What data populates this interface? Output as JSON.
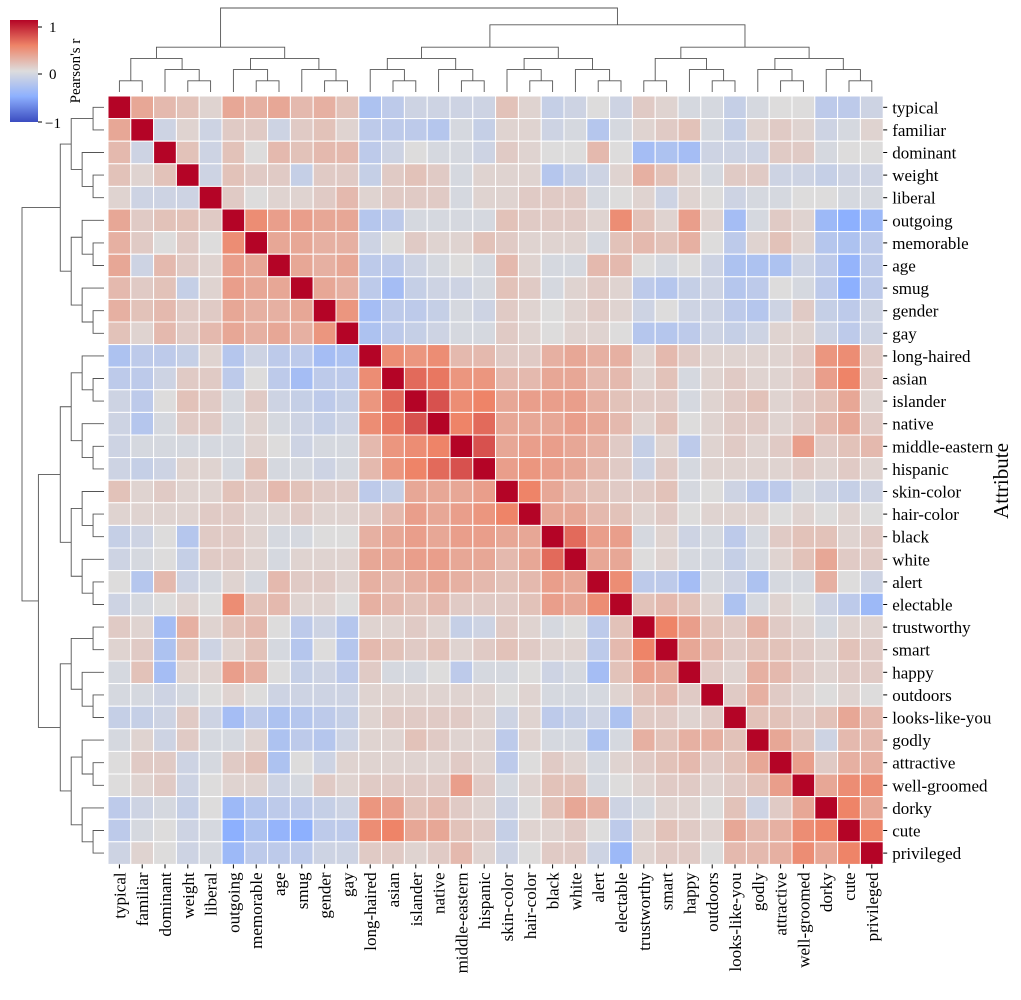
{
  "chart_data": {
    "type": "heatmap",
    "title": "",
    "ylabel": "Attribute",
    "xlabel": "",
    "labels": [
      "typical",
      "familiar",
      "dominant",
      "weight",
      "liberal",
      "outgoing",
      "memorable",
      "age",
      "smug",
      "gender",
      "gay",
      "long-haired",
      "asian",
      "islander",
      "native",
      "middle-eastern",
      "hispanic",
      "skin-color",
      "hair-color",
      "black",
      "white",
      "alert",
      "electable",
      "trustworthy",
      "smart",
      "happy",
      "outdoors",
      "looks-like-you",
      "godly",
      "attractive",
      "well-groomed",
      "dorky",
      "cute",
      "privileged"
    ],
    "colorbar": {
      "label": "Pearson's r",
      "min": -1,
      "max": 1,
      "ticks": [
        "1",
        "0",
        "−1"
      ]
    },
    "colormap": "coolwarm",
    "clusters": [
      [
        0,
        1,
        2,
        3,
        4,
        5,
        6,
        7,
        8,
        9,
        10
      ],
      [
        11,
        12,
        13,
        14,
        15,
        16,
        17,
        18,
        19,
        20,
        21,
        22
      ],
      [
        23,
        24,
        25,
        26,
        27,
        28,
        29,
        30,
        31,
        32,
        33
      ]
    ],
    "values": [
      [
        1,
        0.3,
        0.2,
        0.15,
        0.05,
        0.3,
        0.25,
        0.3,
        0.2,
        0.25,
        0.15,
        -0.3,
        -0.2,
        -0.1,
        -0.1,
        -0.1,
        -0.1,
        0.15,
        0.05,
        -0.15,
        -0.1,
        0,
        -0.1,
        0.1,
        0.05,
        -0.05,
        -0.05,
        -0.15,
        -0.05,
        0,
        0,
        -0.2,
        -0.2,
        -0.1
      ],
      [
        0.3,
        1,
        -0.1,
        0.05,
        -0.1,
        0.1,
        0.1,
        -0.1,
        0.1,
        0.15,
        0.05,
        -0.2,
        -0.2,
        -0.2,
        -0.25,
        -0.05,
        -0.15,
        0.05,
        0.05,
        -0.1,
        -0.05,
        -0.25,
        -0.05,
        0.05,
        0.1,
        0.15,
        -0.05,
        -0.15,
        0.05,
        0.1,
        0.05,
        -0.1,
        -0.05,
        0.05
      ],
      [
        0.2,
        -0.1,
        1,
        0.15,
        -0.1,
        0.15,
        0,
        0.2,
        0.15,
        0.2,
        0.2,
        -0.2,
        -0.1,
        0,
        -0.05,
        -0.05,
        -0.1,
        0.1,
        0.05,
        0,
        0,
        0.2,
        0,
        -0.35,
        -0.3,
        -0.35,
        -0.1,
        -0.1,
        -0.1,
        0.1,
        0.1,
        -0.05,
        0,
        0
      ],
      [
        0.15,
        0.05,
        0.15,
        1,
        -0.1,
        0.15,
        0.1,
        0.1,
        -0.15,
        0.1,
        0.1,
        -0.15,
        0.1,
        0.15,
        0.1,
        -0.05,
        0.05,
        0.05,
        0.05,
        -0.25,
        -0.15,
        -0.1,
        0.05,
        0.25,
        0.15,
        0.05,
        -0.05,
        0.1,
        0.1,
        -0.1,
        -0.1,
        -0.15,
        -0.1,
        -0.1
      ],
      [
        0.05,
        -0.1,
        -0.1,
        -0.1,
        1,
        0.1,
        0,
        0.05,
        0.05,
        0.1,
        0.2,
        0.05,
        0.1,
        0.1,
        0.1,
        -0.05,
        0.05,
        0.05,
        0.1,
        0.1,
        0.1,
        -0.05,
        0,
        0.05,
        -0.1,
        0.05,
        0,
        -0.1,
        -0.05,
        -0.05,
        0,
        0,
        -0.05,
        -0.05
      ],
      [
        0.3,
        0.1,
        0.15,
        0.15,
        0.1,
        1,
        0.45,
        0.35,
        0.35,
        0.3,
        0.3,
        -0.25,
        -0.2,
        -0.05,
        -0.05,
        -0.05,
        -0.05,
        0.15,
        0.1,
        0.1,
        0.1,
        0.05,
        0.45,
        0.15,
        0.05,
        0.35,
        0.05,
        -0.35,
        -0.05,
        0.1,
        0.05,
        -0.4,
        -0.5,
        -0.4
      ],
      [
        0.25,
        0.1,
        0,
        0.1,
        0,
        0.45,
        1,
        0.3,
        0.3,
        0.25,
        0.25,
        -0.1,
        0,
        0.1,
        0.05,
        0.05,
        0.15,
        0.1,
        0.05,
        0.05,
        0.05,
        -0.05,
        0.15,
        0.2,
        0.15,
        0.25,
        0,
        -0.2,
        0.05,
        0.15,
        0.05,
        -0.25,
        -0.3,
        -0.2
      ],
      [
        0.3,
        -0.1,
        0.2,
        0.1,
        0.05,
        0.35,
        0.3,
        1,
        0.3,
        0.25,
        0.3,
        -0.2,
        -0.2,
        -0.1,
        -0.05,
        0,
        -0.05,
        0.2,
        0.05,
        -0.05,
        -0.05,
        0.2,
        0.2,
        0,
        -0.05,
        0,
        -0.1,
        -0.3,
        -0.3,
        -0.3,
        -0.1,
        -0.2,
        -0.45,
        -0.2
      ],
      [
        0.2,
        0.1,
        0.15,
        -0.15,
        0.05,
        0.35,
        0.3,
        0.3,
        1,
        0.3,
        0.25,
        -0.2,
        -0.35,
        -0.15,
        -0.1,
        -0.1,
        -0.05,
        0.15,
        0.1,
        -0.05,
        0.05,
        0.1,
        0.05,
        -0.2,
        -0.25,
        -0.15,
        -0.1,
        -0.25,
        -0.2,
        0,
        -0.05,
        -0.2,
        -0.5,
        -0.2
      ],
      [
        0.25,
        0.15,
        0.2,
        0.1,
        0.1,
        0.3,
        0.25,
        0.25,
        0.3,
        1,
        0.4,
        -0.35,
        -0.2,
        -0.2,
        -0.15,
        -0.05,
        -0.1,
        0.1,
        0.05,
        0,
        0.05,
        0.1,
        0.05,
        -0.1,
        0,
        -0.1,
        -0.1,
        -0.2,
        -0.25,
        -0.1,
        0.1,
        -0.15,
        -0.2,
        -0.1
      ],
      [
        0.15,
        0.05,
        0.2,
        0.1,
        0.2,
        0.3,
        0.25,
        0.3,
        0.25,
        0.4,
        1,
        -0.3,
        -0.2,
        -0.15,
        -0.1,
        -0.05,
        -0.05,
        0.1,
        0.05,
        0,
        0.05,
        0.05,
        0,
        -0.25,
        -0.25,
        -0.2,
        -0.1,
        -0.15,
        -0.1,
        0.05,
        0.05,
        -0.1,
        -0.2,
        -0.1
      ],
      [
        -0.3,
        -0.2,
        -0.2,
        -0.15,
        0.05,
        -0.25,
        -0.1,
        -0.2,
        -0.2,
        -0.35,
        -0.3,
        1,
        0.45,
        0.4,
        0.45,
        0.2,
        0.2,
        0.1,
        0.1,
        0.25,
        0.3,
        0.25,
        0.25,
        0.05,
        0.2,
        0.1,
        0.05,
        0.05,
        0.05,
        0.05,
        0.1,
        0.4,
        0.45,
        0.1
      ],
      [
        -0.2,
        -0.2,
        -0.1,
        0.1,
        0.1,
        -0.2,
        0,
        -0.2,
        -0.35,
        -0.2,
        -0.2,
        0.45,
        1,
        0.6,
        0.55,
        0.4,
        0.4,
        0.2,
        0.2,
        0.3,
        0.3,
        0.2,
        0.2,
        0.05,
        0.15,
        -0.05,
        0.05,
        0.1,
        0.05,
        0.05,
        0.1,
        0.35,
        0.5,
        0.1
      ],
      [
        -0.1,
        -0.2,
        0,
        0.15,
        0.1,
        -0.05,
        0.1,
        -0.1,
        -0.15,
        -0.2,
        -0.15,
        0.4,
        0.6,
        1,
        0.7,
        0.45,
        0.5,
        0.3,
        0.35,
        0.35,
        0.35,
        0.25,
        0.15,
        0.1,
        0.1,
        -0.05,
        0.05,
        0.1,
        0.15,
        0.05,
        0.1,
        0.15,
        0.3,
        0.05
      ],
      [
        -0.1,
        -0.25,
        -0.05,
        0.1,
        0.1,
        -0.05,
        0.05,
        -0.05,
        -0.1,
        -0.15,
        -0.1,
        0.45,
        0.55,
        0.7,
        1,
        0.5,
        0.6,
        0.3,
        0.3,
        0.3,
        0.35,
        0.3,
        0.2,
        0.05,
        0.15,
        0,
        0.05,
        0.1,
        0.1,
        0.05,
        0.1,
        0.2,
        0.3,
        0.1
      ],
      [
        -0.1,
        -0.05,
        -0.05,
        -0.05,
        -0.05,
        -0.05,
        0.05,
        0,
        -0.1,
        -0.05,
        -0.05,
        0.2,
        0.4,
        0.45,
        0.5,
        1,
        0.7,
        0.3,
        0.35,
        0.35,
        0.3,
        0.25,
        0.1,
        -0.15,
        0.05,
        -0.2,
        0.05,
        0.1,
        0.05,
        0.1,
        0.35,
        0.1,
        0.15,
        0.2
      ],
      [
        -0.1,
        -0.15,
        -0.1,
        0.05,
        0.05,
        -0.05,
        0.15,
        -0.05,
        -0.05,
        -0.1,
        -0.05,
        0.2,
        0.4,
        0.5,
        0.6,
        0.7,
        1,
        0.35,
        0.4,
        0.35,
        0.3,
        0.2,
        0.1,
        -0.1,
        0.1,
        -0.05,
        0.05,
        0.05,
        0.05,
        0.05,
        0.1,
        0.05,
        0.1,
        0.05
      ],
      [
        0.15,
        0.05,
        0.1,
        0.05,
        0.05,
        0.15,
        0.1,
        0.2,
        0.15,
        0.1,
        0.1,
        -0.2,
        -0.15,
        0.3,
        0.3,
        0.3,
        0.35,
        1,
        0.5,
        0.3,
        0.2,
        0.15,
        0.1,
        0.1,
        0.15,
        -0.05,
        0,
        -0.1,
        -0.2,
        -0.2,
        -0.05,
        -0.1,
        -0.15,
        -0.1
      ],
      [
        0.05,
        0.05,
        0.05,
        0.05,
        0.1,
        0.1,
        0.05,
        0.05,
        0.1,
        0.05,
        0.05,
        0.1,
        0.2,
        0.35,
        0.3,
        0.35,
        0.4,
        0.5,
        1,
        0.3,
        0.3,
        0.2,
        0.15,
        0.05,
        0.1,
        0,
        0.05,
        0.05,
        0.05,
        0,
        0.05,
        0,
        0.05,
        0
      ],
      [
        -0.15,
        -0.1,
        0,
        -0.25,
        0.1,
        0.1,
        0.05,
        -0.05,
        -0.05,
        0,
        0,
        0.25,
        0.3,
        0.35,
        0.3,
        0.35,
        0.35,
        0.3,
        0.3,
        1,
        0.6,
        0.35,
        0.35,
        -0.05,
        0.05,
        -0.1,
        -0.05,
        -0.2,
        -0.05,
        0.1,
        0.15,
        0.15,
        0.05,
        0.1
      ],
      [
        -0.1,
        -0.05,
        0,
        -0.15,
        0.1,
        0.1,
        0.05,
        -0.05,
        0.05,
        0.05,
        0.05,
        0.3,
        0.3,
        0.35,
        0.35,
        0.3,
        0.3,
        0.2,
        0.3,
        0.6,
        1,
        0.3,
        0.3,
        0,
        0.05,
        -0.05,
        -0.05,
        -0.15,
        -0.05,
        0.05,
        0.15,
        0.3,
        0.1,
        0.1
      ],
      [
        0,
        -0.25,
        0.2,
        -0.1,
        -0.05,
        0.05,
        -0.05,
        0.2,
        0.1,
        0.1,
        0.05,
        0.25,
        0.2,
        0.25,
        0.3,
        0.25,
        0.2,
        0.15,
        0.2,
        0.35,
        0.3,
        1,
        0.45,
        -0.2,
        -0.2,
        -0.35,
        -0.05,
        -0.1,
        -0.3,
        -0.05,
        -0.05,
        0.25,
        0,
        -0.1
      ],
      [
        -0.1,
        -0.05,
        0,
        0.05,
        0,
        0.45,
        0.15,
        0.2,
        0.05,
        0.05,
        0,
        0.25,
        0.2,
        0.15,
        0.2,
        0.1,
        0.1,
        0.1,
        0.15,
        0.35,
        0.3,
        0.45,
        1,
        0.15,
        0.2,
        0.15,
        0.05,
        -0.3,
        -0.05,
        0.05,
        0,
        -0.1,
        -0.2,
        -0.4
      ],
      [
        0.1,
        0.05,
        -0.35,
        0.25,
        0.05,
        0.15,
        0.2,
        0,
        -0.2,
        -0.1,
        -0.25,
        0.05,
        0.05,
        0.1,
        0.05,
        -0.15,
        -0.1,
        0.1,
        0.05,
        -0.05,
        0,
        -0.2,
        0.15,
        1,
        0.5,
        0.35,
        0.15,
        0.1,
        0.25,
        0.1,
        0.05,
        -0.05,
        0.05,
        0.05
      ],
      [
        0.05,
        0.1,
        -0.3,
        0.15,
        -0.1,
        0.05,
        0.15,
        -0.05,
        -0.25,
        0,
        -0.25,
        0.2,
        0.15,
        0.1,
        0.15,
        0.05,
        0.1,
        0.15,
        0.1,
        0.05,
        0.05,
        -0.2,
        0.2,
        0.5,
        1,
        0.3,
        0.2,
        0.1,
        0.15,
        0.15,
        0.1,
        0.05,
        0.15,
        0.1
      ],
      [
        -0.05,
        0.15,
        -0.35,
        0.05,
        0.05,
        0.35,
        0.25,
        0,
        -0.15,
        -0.1,
        -0.2,
        0.1,
        -0.05,
        -0.05,
        0,
        -0.2,
        -0.05,
        -0.05,
        0,
        -0.1,
        -0.05,
        -0.35,
        0.15,
        0.35,
        0.3,
        1,
        0.1,
        0.05,
        0.25,
        0.2,
        0.1,
        0.05,
        0.1,
        0.1
      ],
      [
        -0.05,
        -0.05,
        -0.1,
        -0.05,
        0,
        0.05,
        0,
        -0.1,
        -0.1,
        -0.1,
        -0.1,
        0.05,
        0.05,
        0.05,
        0.05,
        0.05,
        0.05,
        0,
        0.05,
        -0.05,
        -0.05,
        -0.05,
        0.05,
        0.15,
        0.2,
        0.1,
        1,
        0.1,
        0.25,
        0.1,
        0.05,
        0,
        0.05,
        0
      ],
      [
        -0.15,
        -0.15,
        -0.1,
        0.1,
        -0.1,
        -0.35,
        -0.2,
        -0.3,
        -0.25,
        -0.2,
        -0.15,
        0.05,
        0.1,
        0.1,
        0.1,
        0.1,
        0.05,
        -0.1,
        0.05,
        -0.2,
        -0.15,
        -0.1,
        -0.3,
        0.1,
        0.1,
        0.05,
        0.1,
        1,
        0.15,
        0.15,
        0.1,
        0.15,
        0.3,
        0.2
      ],
      [
        -0.05,
        0.05,
        -0.1,
        0.1,
        -0.05,
        -0.05,
        0.05,
        -0.3,
        -0.2,
        -0.25,
        -0.1,
        0.05,
        0.05,
        0.15,
        0.1,
        0.05,
        0.05,
        -0.2,
        0.05,
        -0.05,
        -0.05,
        -0.3,
        -0.05,
        0.25,
        0.15,
        0.25,
        0.25,
        0.15,
        1,
        0.3,
        0.15,
        -0.1,
        0.2,
        0.2
      ],
      [
        0,
        0.1,
        0.1,
        -0.1,
        -0.05,
        0.1,
        0.15,
        -0.3,
        0,
        -0.1,
        0.05,
        0.05,
        0.05,
        0.05,
        0.05,
        0.1,
        0.05,
        -0.2,
        0,
        0.1,
        0.05,
        -0.05,
        0.05,
        0.1,
        0.15,
        0.2,
        0.1,
        0.15,
        0.3,
        1,
        0.35,
        0.1,
        0.25,
        0.25
      ],
      [
        0,
        0.05,
        0.1,
        -0.1,
        0,
        0.05,
        0.05,
        -0.1,
        -0.05,
        0.1,
        0.05,
        0.1,
        0.1,
        0.1,
        0.1,
        0.35,
        0.1,
        -0.05,
        0.05,
        0.15,
        0.15,
        -0.05,
        0,
        0.05,
        0.1,
        0.1,
        0.05,
        0.1,
        0.15,
        0.35,
        1,
        0.3,
        0.45,
        0.45
      ],
      [
        -0.2,
        -0.1,
        -0.05,
        -0.15,
        0,
        -0.4,
        -0.25,
        -0.2,
        -0.2,
        -0.15,
        -0.1,
        0.4,
        0.35,
        0.15,
        0.2,
        0.1,
        0.05,
        -0.1,
        0,
        0.15,
        0.3,
        0.25,
        -0.1,
        -0.05,
        0.05,
        0.05,
        0,
        0.15,
        -0.1,
        0.1,
        0.3,
        1,
        0.5,
        0.3
      ],
      [
        -0.2,
        -0.05,
        0,
        -0.1,
        -0.05,
        -0.5,
        -0.3,
        -0.45,
        -0.5,
        -0.2,
        -0.2,
        0.45,
        0.5,
        0.3,
        0.3,
        0.15,
        0.1,
        -0.15,
        0.05,
        0.05,
        0.1,
        0,
        -0.2,
        0.05,
        0.15,
        0.1,
        0.05,
        0.3,
        0.2,
        0.25,
        0.45,
        0.5,
        1,
        0.5
      ],
      [
        -0.1,
        0.05,
        0,
        -0.1,
        -0.05,
        -0.4,
        -0.2,
        -0.2,
        -0.2,
        -0.1,
        -0.1,
        0.1,
        0.1,
        0.05,
        0.1,
        0.2,
        0.05,
        -0.1,
        0,
        0.1,
        0.1,
        -0.1,
        -0.4,
        0.05,
        0.1,
        0.1,
        0,
        0.2,
        0.2,
        0.25,
        0.45,
        0.3,
        0.5,
        1
      ]
    ]
  }
}
